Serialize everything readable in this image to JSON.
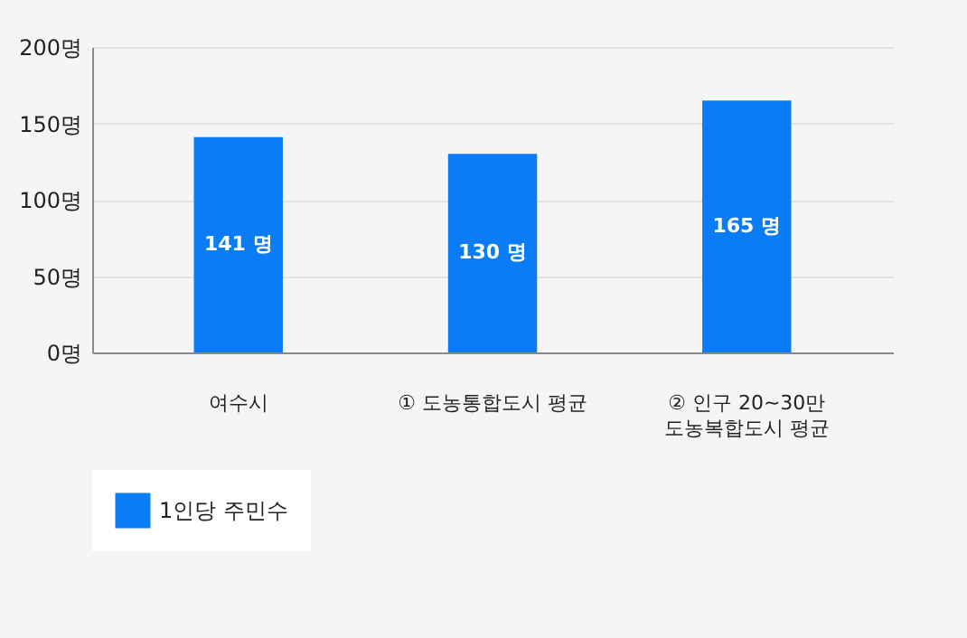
{
  "chart_data": {
    "type": "bar",
    "categories": [
      "여수시",
      "① 도농통합도시 평균",
      "② 인구 20~30만\n도농복합도시 평균"
    ],
    "series": [
      {
        "name": "1인당 주민수",
        "color": "#0a7cf5",
        "values": [
          141,
          130,
          165
        ]
      }
    ],
    "value_labels": [
      "141 명",
      "130 명",
      "165 명"
    ],
    "ylim": [
      0,
      200
    ],
    "yticks": [
      {
        "value": 0,
        "label": "0명"
      },
      {
        "value": 50,
        "label": "50명"
      },
      {
        "value": 100,
        "label": "100명"
      },
      {
        "value": 150,
        "label": "150명"
      },
      {
        "value": 200,
        "label": "200명"
      }
    ],
    "grid": "y",
    "legend": "bottom"
  }
}
